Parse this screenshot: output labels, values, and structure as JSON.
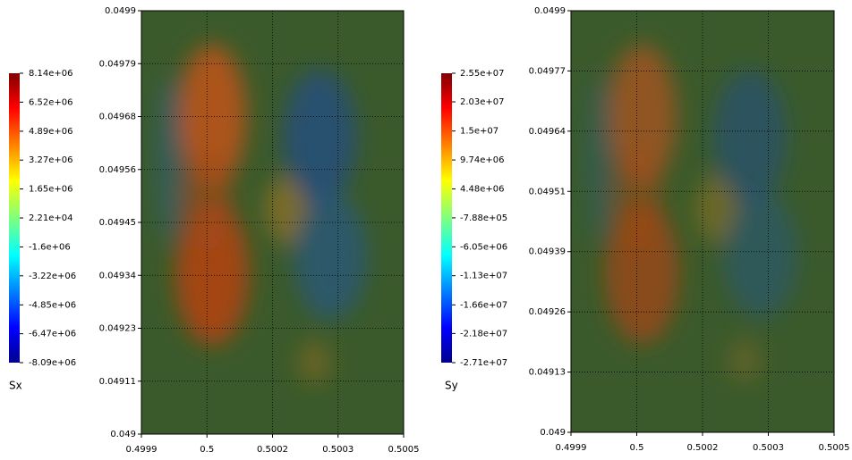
{
  "chart_data": [
    {
      "type": "heatmap",
      "xlim": [
        0.4999,
        0.5005
      ],
      "xticks": [
        0.4999,
        {
          "value": 0.50005,
          "label": "0.5"
        },
        0.5002,
        {
          "value": 0.50035,
          "label": "0.5003"
        },
        0.5005
      ],
      "ylim": [
        0.049,
        0.0499
      ],
      "yticks": [
        0.049,
        {
          "value": 0.0491125,
          "label": "0.04911"
        },
        {
          "value": 0.049225,
          "label": "0.04923"
        },
        {
          "value": 0.0493375,
          "label": "0.04934"
        },
        0.04945,
        {
          "value": 0.0495625,
          "label": "0.04956"
        },
        {
          "value": 0.049675,
          "label": "0.04968"
        },
        {
          "value": 0.0497875,
          "label": "0.04979"
        },
        0.0499
      ],
      "grid": true,
      "colorbar": {
        "label": "Sx",
        "lim": [
          -8090000,
          8140000
        ],
        "ticks": [
          {
            "value": 8140000,
            "label": "8.14e+06"
          },
          {
            "value": 6520000,
            "label": "6.52e+06"
          },
          {
            "value": 4890000,
            "label": "4.89e+06"
          },
          {
            "value": 3270000,
            "label": "3.27e+06"
          },
          {
            "value": 1650000,
            "label": "1.65e+06"
          },
          {
            "value": 22100,
            "label": "2.21e+04"
          },
          {
            "value": -1600000,
            "label": "-1.6e+06"
          },
          {
            "value": -3220000,
            "label": "-3.22e+06"
          },
          {
            "value": -4850000,
            "label": "-4.85e+06"
          },
          {
            "value": -6470000,
            "label": "-6.47e+06"
          },
          {
            "value": -8090000,
            "label": "-8.09e+06"
          }
        ]
      }
    },
    {
      "type": "heatmap",
      "xlim": [
        0.4999,
        0.5005
      ],
      "xticks": [
        0.4999,
        {
          "value": 0.50005,
          "label": "0.5"
        },
        0.5002,
        {
          "value": 0.50035,
          "label": "0.5003"
        },
        0.5005
      ],
      "ylim": [
        0.049,
        0.0499
      ],
      "yticks": [
        0.049,
        {
          "value": 0.0491286,
          "label": "0.04913"
        },
        {
          "value": 0.0492571,
          "label": "0.04926"
        },
        {
          "value": 0.0493857,
          "label": "0.04939"
        },
        {
          "value": 0.0495143,
          "label": "0.04951"
        },
        {
          "value": 0.0496429,
          "label": "0.04964"
        },
        {
          "value": 0.0497714,
          "label": "0.04977"
        },
        0.0499
      ],
      "grid": true,
      "colorbar": {
        "label": "Sy",
        "lim": [
          -27100000,
          25500000
        ],
        "ticks": [
          {
            "value": 25500000,
            "label": "2.55e+07"
          },
          {
            "value": 20300000,
            "label": "2.03e+07"
          },
          {
            "value": 15000000,
            "label": "1.5e+07"
          },
          {
            "value": 9740000,
            "label": "9.74e+06"
          },
          {
            "value": 4480000,
            "label": "4.48e+06"
          },
          {
            "value": -788000,
            "label": "-7.88e+05"
          },
          {
            "value": -6050000,
            "label": "-6.05e+06"
          },
          {
            "value": -11300000,
            "label": "-1.13e+07"
          },
          {
            "value": -16600000,
            "label": "-1.66e+07"
          },
          {
            "value": -21800000,
            "label": "-2.18e+07"
          },
          {
            "value": -27100000,
            "label": "-2.71e+07"
          }
        ]
      }
    }
  ]
}
